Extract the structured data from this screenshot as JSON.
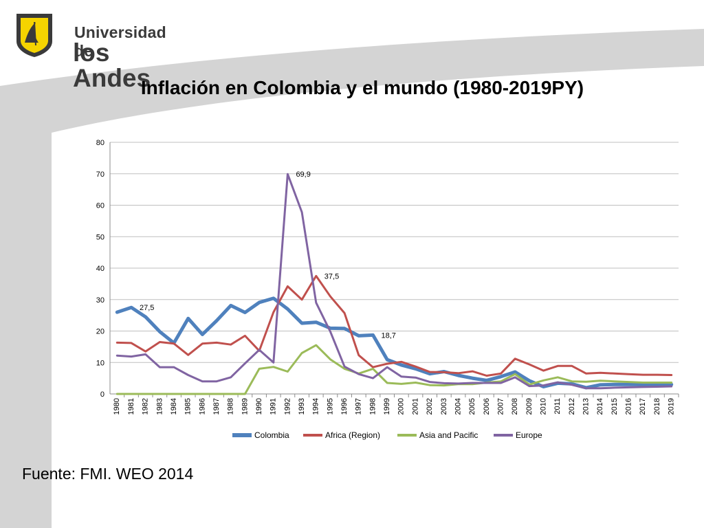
{
  "logo": {
    "line1": "Universidad de",
    "line2": "los Andes"
  },
  "title": "Inflación en Colombia y el mundo (1980-2019PY)",
  "source": "Fuente: FMI. WEO 2014",
  "colors": {
    "band": "#d4d4d4",
    "logo_yellow": "#f5d400",
    "logo_dark": "#3a3a3a"
  },
  "chart_data": {
    "type": "line",
    "title": "Inflación en Colombia y el mundo (1980-2019PY)",
    "xlabel": "",
    "ylabel": "",
    "ylim": [
      0,
      80
    ],
    "yticks": [
      0,
      10,
      20,
      30,
      40,
      50,
      60,
      70,
      80
    ],
    "grid": true,
    "legend": "bottom",
    "x": [
      "1980",
      "1981",
      "1982",
      "1983",
      "1984",
      "1985",
      "1986",
      "1987",
      "1988",
      "1989",
      "1990",
      "1991",
      "1992",
      "1993",
      "1994",
      "1995",
      "1996",
      "1997",
      "1998",
      "1999",
      "2000",
      "2001",
      "2002",
      "2003",
      "2004",
      "2005",
      "2006",
      "2007",
      "2008",
      "2009",
      "2010",
      "2011",
      "2012",
      "2013",
      "2014",
      "2015",
      "2016",
      "2017",
      "2018",
      "2019"
    ],
    "series": [
      {
        "name": "Colombia",
        "color": "#4f81bd",
        "width": 5,
        "values": [
          26.0,
          27.5,
          24.5,
          19.8,
          16.2,
          24.0,
          18.9,
          23.3,
          28.1,
          25.9,
          29.1,
          30.4,
          27.0,
          22.5,
          22.8,
          20.9,
          20.8,
          18.5,
          18.7,
          10.9,
          9.2,
          8.0,
          6.4,
          7.1,
          5.9,
          5.0,
          4.3,
          5.5,
          7.0,
          4.2,
          2.3,
          3.4,
          3.2,
          2.0,
          2.9,
          3.0,
          3.0,
          3.0,
          3.0,
          3.0
        ]
      },
      {
        "name": "Africa (Region)",
        "color": "#c0504d",
        "width": 3,
        "values": [
          16.3,
          16.2,
          13.5,
          16.5,
          16.0,
          12.4,
          16.0,
          16.3,
          15.7,
          18.5,
          13.7,
          26.0,
          34.2,
          30.0,
          37.5,
          31.0,
          25.7,
          12.3,
          8.5,
          9.6,
          10.2,
          8.7,
          7.0,
          6.9,
          6.6,
          7.2,
          5.8,
          6.5,
          11.2,
          9.4,
          7.4,
          8.9,
          8.9,
          6.5,
          6.7,
          6.5,
          6.3,
          6.1,
          6.1,
          6.0
        ]
      },
      {
        "name": "Asia and Pacific",
        "color": "#9bbb59",
        "width": 3,
        "values": [
          0,
          0,
          0,
          0,
          0,
          0,
          0,
          0,
          0,
          0,
          8.0,
          8.6,
          7.1,
          13.0,
          15.5,
          11.0,
          8.0,
          6.5,
          8.0,
          3.5,
          3.2,
          3.6,
          2.8,
          2.7,
          3.1,
          3.1,
          3.6,
          4.0,
          6.3,
          3.0,
          4.3,
          5.3,
          4.0,
          3.9,
          4.2,
          4.0,
          3.8,
          3.6,
          3.6,
          3.6
        ]
      },
      {
        "name": "Europe",
        "color": "#8064a2",
        "width": 3,
        "values": [
          12.2,
          11.9,
          12.6,
          8.5,
          8.5,
          6.0,
          4.0,
          4.0,
          5.3,
          9.7,
          14.0,
          10.0,
          69.9,
          57.8,
          29.0,
          19.8,
          8.7,
          6.3,
          5.0,
          8.5,
          5.5,
          5.2,
          3.8,
          3.4,
          3.3,
          3.5,
          3.5,
          3.5,
          5.3,
          2.5,
          2.7,
          3.7,
          2.9,
          1.8,
          1.8,
          2.0,
          2.1,
          2.2,
          2.3,
          2.4
        ]
      }
    ],
    "annotations": [
      {
        "series": "Colombia",
        "x": "1981",
        "label": "27,5"
      },
      {
        "series": "Europe",
        "x": "1992",
        "label": "69,9"
      },
      {
        "series": "Africa (Region)",
        "x": "1994",
        "label": "37,5"
      },
      {
        "series": "Colombia",
        "x": "1998",
        "label": "18,7"
      }
    ]
  }
}
